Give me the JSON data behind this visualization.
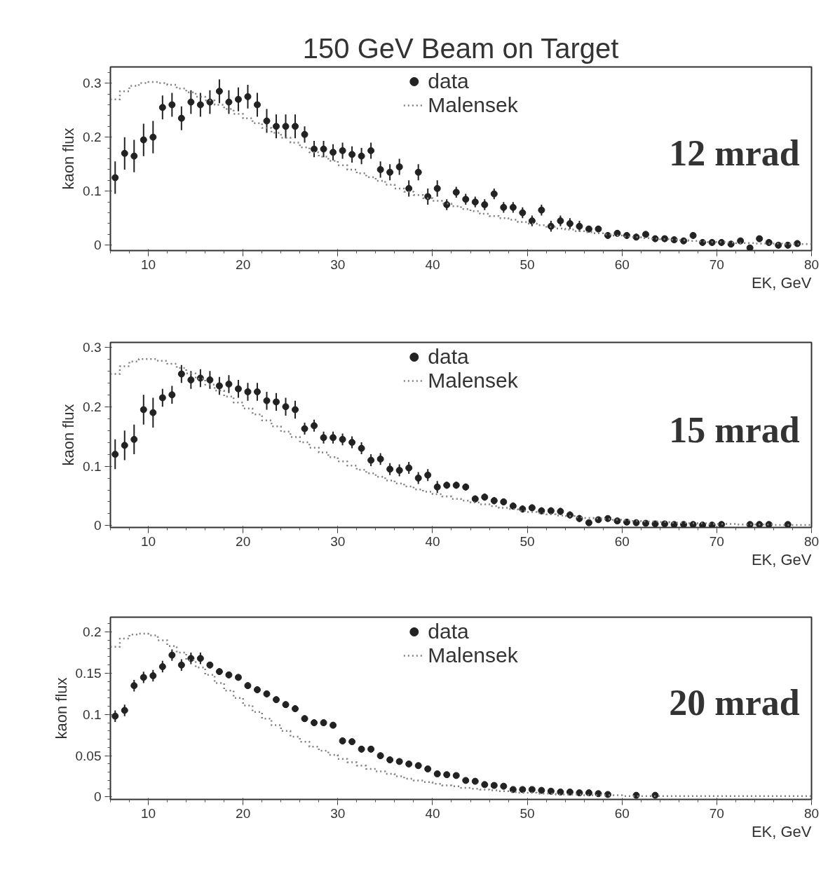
{
  "chart_data": [
    {
      "type": "scatter",
      "title": "150 GeV Beam on Target",
      "xlabel": "EK, GeV",
      "ylabel": "kaon flux",
      "xlim": [
        6,
        80
      ],
      "xticks": [
        10,
        20,
        30,
        40,
        50,
        60,
        70,
        80
      ],
      "ylim": [
        -0.01,
        0.33
      ],
      "yticks": [
        0,
        0.1,
        0.2,
        0.3
      ],
      "legend": "top",
      "annotations": [
        "12 mrad"
      ],
      "series": [
        {
          "name": "data",
          "marker": "circle",
          "color": "#222222",
          "x": [
            6.5,
            7.5,
            8.5,
            9.5,
            10.5,
            11.5,
            12.5,
            13.5,
            14.5,
            15.5,
            16.5,
            17.5,
            18.5,
            19.5,
            20.5,
            21.5,
            22.5,
            23.5,
            24.5,
            25.5,
            26.5,
            27.5,
            28.5,
            29.5,
            30.5,
            31.5,
            32.5,
            33.5,
            34.5,
            35.5,
            36.5,
            37.5,
            38.5,
            39.5,
            40.5,
            41.5,
            42.5,
            43.5,
            44.5,
            45.5,
            46.5,
            47.5,
            48.5,
            49.5,
            50.5,
            51.5,
            52.5,
            53.5,
            54.5,
            55.5,
            56.5,
            57.5,
            58.5,
            59.5,
            60.5,
            61.5,
            62.5,
            63.5,
            64.5,
            65.5,
            66.5,
            67.5,
            68.5,
            69.5,
            70.5,
            71.5,
            72.5,
            73.5,
            74.5,
            75.5,
            76.5,
            77.5,
            78.5
          ],
          "values": [
            0.125,
            0.17,
            0.165,
            0.195,
            0.2,
            0.255,
            0.26,
            0.235,
            0.265,
            0.26,
            0.265,
            0.285,
            0.265,
            0.27,
            0.275,
            0.26,
            0.23,
            0.22,
            0.22,
            0.22,
            0.205,
            0.178,
            0.178,
            0.172,
            0.175,
            0.168,
            0.165,
            0.175,
            0.14,
            0.135,
            0.145,
            0.105,
            0.135,
            0.09,
            0.105,
            0.075,
            0.098,
            0.085,
            0.08,
            0.075,
            0.095,
            0.07,
            0.07,
            0.06,
            0.045,
            0.065,
            0.035,
            0.045,
            0.04,
            0.035,
            0.03,
            0.03,
            0.018,
            0.022,
            0.018,
            0.015,
            0.02,
            0.012,
            0.012,
            0.01,
            0.008,
            0.018,
            0.005,
            0.005,
            0.005,
            0.002,
            0.008,
            -0.005,
            0.012,
            0.005,
            0.0,
            0.0,
            0.003
          ],
          "errors": [
            0.03,
            0.03,
            0.03,
            0.03,
            0.03,
            0.022,
            0.022,
            0.022,
            0.022,
            0.022,
            0.022,
            0.022,
            0.022,
            0.022,
            0.022,
            0.022,
            0.022,
            0.022,
            0.022,
            0.022,
            0.015,
            0.015,
            0.015,
            0.015,
            0.015,
            0.015,
            0.015,
            0.015,
            0.015,
            0.015,
            0.015,
            0.015,
            0.015,
            0.015,
            0.015,
            0.01,
            0.01,
            0.01,
            0.01,
            0.01,
            0.01,
            0.01,
            0.01,
            0.01,
            0.01,
            0.01,
            0.01,
            0.01,
            0.01,
            0.01,
            0.006,
            0.006,
            0.006,
            0.006,
            0.006,
            0.006,
            0.006,
            0.006,
            0.006,
            0.006,
            0.006,
            0.006,
            0.006,
            0.006,
            0.006,
            0.006,
            0.006,
            0.004,
            0.006,
            0.006,
            0.006,
            0.006,
            0.006
          ]
        },
        {
          "name": "Malensek",
          "type": "step",
          "color": "#808080",
          "line_style": "dotted",
          "x": [
            6,
            7,
            8,
            9,
            10,
            11,
            12,
            13,
            14,
            15,
            16,
            17,
            18,
            19,
            20,
            21,
            22,
            23,
            24,
            25,
            26,
            27,
            28,
            29,
            30,
            31,
            32,
            33,
            34,
            35,
            36,
            37,
            38,
            39,
            40,
            41,
            42,
            43,
            44,
            45,
            46,
            47,
            48,
            49,
            50,
            51,
            52,
            53,
            54,
            55,
            56,
            57,
            58,
            59,
            60,
            61,
            62,
            63,
            64,
            65,
            66,
            67,
            68,
            69,
            70,
            71,
            72,
            73,
            74,
            75,
            76,
            77,
            78,
            79,
            80
          ],
          "values": [
            0.27,
            0.285,
            0.295,
            0.3,
            0.302,
            0.3,
            0.297,
            0.29,
            0.283,
            0.275,
            0.268,
            0.26,
            0.252,
            0.243,
            0.235,
            0.226,
            0.217,
            0.208,
            0.199,
            0.19,
            0.181,
            0.172,
            0.164,
            0.156,
            0.148,
            0.14,
            0.133,
            0.126,
            0.119,
            0.112,
            0.105,
            0.099,
            0.093,
            0.087,
            0.082,
            0.077,
            0.072,
            0.067,
            0.063,
            0.058,
            0.054,
            0.05,
            0.047,
            0.043,
            0.04,
            0.037,
            0.034,
            0.031,
            0.029,
            0.026,
            0.024,
            0.022,
            0.02,
            0.018,
            0.016,
            0.015,
            0.013,
            0.012,
            0.011,
            0.01,
            0.009,
            0.008,
            0.007,
            0.006,
            0.006,
            0.005,
            0.004,
            0.004,
            0.003,
            0.003,
            0.003,
            0.002,
            0.002,
            0.002,
            0.002
          ]
        }
      ]
    },
    {
      "type": "scatter",
      "xlabel": "EK, GeV",
      "ylabel": "kaon flux",
      "xlim": [
        6,
        80
      ],
      "xticks": [
        10,
        20,
        30,
        40,
        50,
        60,
        70,
        80
      ],
      "ylim": [
        -0.003,
        0.308
      ],
      "yticks": [
        0,
        0.1,
        0.2,
        0.3
      ],
      "legend": "top",
      "annotations": [
        "15 mrad"
      ],
      "series": [
        {
          "name": "data",
          "marker": "circle",
          "color": "#222222",
          "x": [
            6.5,
            7.5,
            8.5,
            9.5,
            10.5,
            11.5,
            12.5,
            13.5,
            14.5,
            15.5,
            16.5,
            17.5,
            18.5,
            19.5,
            20.5,
            21.5,
            22.5,
            23.5,
            24.5,
            25.5,
            26.5,
            27.5,
            28.5,
            29.5,
            30.5,
            31.5,
            32.5,
            33.5,
            34.5,
            35.5,
            36.5,
            37.5,
            38.5,
            39.5,
            40.5,
            41.5,
            42.5,
            43.5,
            44.5,
            45.5,
            46.5,
            47.5,
            48.5,
            49.5,
            50.5,
            51.5,
            52.5,
            53.5,
            54.5,
            55.5,
            56.5,
            57.5,
            58.5,
            59.5,
            60.5,
            61.5,
            62.5,
            63.5,
            64.5,
            65.5,
            66.5,
            67.5,
            68.5,
            69.5,
            70.5,
            71.5,
            72.5,
            73.5,
            74.5,
            75.5,
            76.5,
            77.5
          ],
          "values": [
            0.12,
            0.135,
            0.145,
            0.195,
            0.19,
            0.215,
            0.22,
            0.255,
            0.245,
            0.248,
            0.245,
            0.235,
            0.238,
            0.23,
            0.225,
            0.225,
            0.21,
            0.208,
            0.2,
            0.195,
            0.163,
            0.168,
            0.148,
            0.148,
            0.145,
            0.14,
            0.13,
            0.11,
            0.112,
            0.095,
            0.093,
            0.097,
            0.08,
            0.085,
            0.065,
            0.068,
            0.068,
            0.065,
            0.045,
            0.048,
            0.042,
            0.04,
            0.033,
            0.028,
            0.03,
            0.025,
            0.025,
            0.024,
            0.018,
            0.012,
            0.005,
            0.01,
            0.012,
            0.008,
            0.006,
            0.005,
            0.004,
            0.003,
            0.003,
            0.002,
            0.002,
            0.002,
            0.001,
            0.001,
            0.002,
            null,
            null,
            0.002,
            0.002,
            0.002,
            null,
            0.002
          ],
          "errors": [
            0.025,
            0.025,
            0.025,
            0.025,
            0.025,
            0.015,
            0.015,
            0.015,
            0.015,
            0.015,
            0.015,
            0.015,
            0.015,
            0.015,
            0.015,
            0.015,
            0.015,
            0.015,
            0.015,
            0.015,
            0.01,
            0.01,
            0.01,
            0.01,
            0.01,
            0.01,
            0.01,
            0.01,
            0.01,
            0.01,
            0.01,
            0.01,
            0.01,
            0.01,
            0.01,
            0.006,
            0.006,
            0.006,
            0.006,
            0.006,
            0.006,
            0.006,
            0.006,
            0.006,
            0.006,
            0.006,
            0.006,
            0.006,
            0.006,
            0.006,
            0.004,
            0.004,
            0.004,
            0.004,
            0.004,
            0.004,
            0.004,
            0.004,
            0.004,
            0.004,
            0.004,
            0.004,
            0.004,
            0.004,
            0.004,
            null,
            null,
            0.004,
            0.004,
            0.004,
            null,
            0.004
          ]
        },
        {
          "name": "Malensek",
          "type": "step",
          "color": "#808080",
          "line_style": "dotted",
          "x": [
            6,
            7,
            8,
            9,
            10,
            11,
            12,
            13,
            14,
            15,
            16,
            17,
            18,
            19,
            20,
            21,
            22,
            23,
            24,
            25,
            26,
            27,
            28,
            29,
            30,
            31,
            32,
            33,
            34,
            35,
            36,
            37,
            38,
            39,
            40,
            41,
            42,
            43,
            44,
            45,
            46,
            47,
            48,
            49,
            50,
            51,
            52,
            53,
            54,
            55,
            56,
            57,
            58,
            59,
            60,
            61,
            62,
            63,
            64,
            65,
            66,
            67,
            68,
            69,
            70,
            71,
            72,
            73,
            74,
            75,
            76,
            77,
            78,
            79,
            80
          ],
          "values": [
            0.255,
            0.268,
            0.276,
            0.28,
            0.28,
            0.277,
            0.272,
            0.265,
            0.256,
            0.247,
            0.237,
            0.227,
            0.217,
            0.207,
            0.197,
            0.187,
            0.177,
            0.167,
            0.158,
            0.149,
            0.14,
            0.131,
            0.123,
            0.115,
            0.108,
            0.101,
            0.094,
            0.088,
            0.082,
            0.076,
            0.071,
            0.066,
            0.061,
            0.057,
            0.053,
            0.049,
            0.045,
            0.042,
            0.039,
            0.036,
            0.033,
            0.03,
            0.028,
            0.025,
            0.023,
            0.021,
            0.019,
            0.017,
            0.016,
            0.014,
            0.013,
            0.012,
            0.011,
            0.01,
            0.009,
            0.008,
            0.007,
            0.007,
            0.006,
            0.005,
            0.005,
            0.004,
            0.004,
            0.003,
            0.003,
            0.003,
            0.002,
            0.002,
            0.002,
            0.002,
            0.001,
            0.001,
            0.001,
            0.001,
            0.001
          ]
        }
      ]
    },
    {
      "type": "scatter",
      "xlabel": "EK, GeV",
      "ylabel": "kaon flux",
      "xlim": [
        6,
        80
      ],
      "xticks": [
        10,
        20,
        30,
        40,
        50,
        60,
        70,
        80
      ],
      "ylim": [
        -0.003,
        0.218
      ],
      "yticks": [
        0,
        0.05,
        0.1,
        0.15,
        0.2
      ],
      "legend": "top",
      "annotations": [
        "20 mrad"
      ],
      "series": [
        {
          "name": "data",
          "marker": "circle",
          "color": "#222222",
          "x": [
            6.5,
            7.5,
            8.5,
            9.5,
            10.5,
            11.5,
            12.5,
            13.5,
            14.5,
            15.5,
            16.5,
            17.5,
            18.5,
            19.5,
            20.5,
            21.5,
            22.5,
            23.5,
            24.5,
            25.5,
            26.5,
            27.5,
            28.5,
            29.5,
            30.5,
            31.5,
            32.5,
            33.5,
            34.5,
            35.5,
            36.5,
            37.5,
            38.5,
            39.5,
            40.5,
            41.5,
            42.5,
            43.5,
            44.5,
            45.5,
            46.5,
            47.5,
            48.5,
            49.5,
            50.5,
            51.5,
            52.5,
            53.5,
            54.5,
            55.5,
            56.5,
            57.5,
            58.5,
            59.5,
            60.5,
            61.5,
            62.5,
            63.5
          ],
          "values": [
            0.098,
            0.105,
            0.135,
            0.145,
            0.147,
            0.158,
            0.172,
            0.16,
            0.168,
            0.168,
            0.16,
            0.152,
            0.148,
            0.145,
            0.135,
            0.13,
            0.125,
            0.118,
            0.112,
            0.107,
            0.095,
            0.09,
            0.09,
            0.087,
            0.068,
            0.067,
            0.058,
            0.058,
            0.05,
            0.045,
            0.043,
            0.04,
            0.038,
            0.034,
            0.028,
            0.027,
            0.026,
            0.02,
            0.019,
            0.015,
            0.014,
            0.013,
            0.009,
            0.009,
            0.009,
            0.008,
            0.007,
            0.006,
            0.006,
            0.005,
            0.005,
            0.004,
            0.003,
            null,
            null,
            0.002,
            null,
            0.002
          ],
          "errors": [
            0.007,
            0.007,
            0.007,
            0.007,
            0.007,
            0.007,
            0.007,
            0.007,
            0.007,
            0.007,
            0.004,
            0.004,
            0.004,
            0.004,
            0.004,
            0.004,
            0.004,
            0.004,
            0.004,
            0.004,
            0.004,
            0.004,
            0.004,
            0.004,
            0.004,
            0.004,
            0.004,
            0.004,
            0.004,
            0.004,
            0.002,
            0.002,
            0.002,
            0.002,
            0.002,
            0.002,
            0.002,
            0.002,
            0.002,
            0.002,
            0.002,
            0.002,
            0.002,
            0.002,
            0.002,
            0.002,
            0.002,
            0.002,
            0.002,
            0.002,
            0.002,
            0.002,
            0.002,
            null,
            null,
            0.002,
            null,
            0.002
          ]
        },
        {
          "name": "Malensek",
          "type": "step",
          "color": "#808080",
          "line_style": "dotted",
          "x": [
            6,
            7,
            8,
            9,
            10,
            11,
            12,
            13,
            14,
            15,
            16,
            17,
            18,
            19,
            20,
            21,
            22,
            23,
            24,
            25,
            26,
            27,
            28,
            29,
            30,
            31,
            32,
            33,
            34,
            35,
            36,
            37,
            38,
            39,
            40,
            41,
            42,
            43,
            44,
            45,
            46,
            47,
            48,
            49,
            50,
            51,
            52,
            53,
            54,
            55,
            56,
            57,
            58,
            59,
            60,
            61,
            62,
            63,
            64,
            65,
            66,
            67,
            68,
            69,
            70,
            71,
            72,
            73,
            74,
            75,
            76,
            77,
            78,
            79,
            80
          ],
          "values": [
            0.182,
            0.192,
            0.197,
            0.198,
            0.196,
            0.19,
            0.183,
            0.175,
            0.166,
            0.157,
            0.148,
            0.138,
            0.129,
            0.12,
            0.111,
            0.103,
            0.095,
            0.087,
            0.08,
            0.073,
            0.067,
            0.061,
            0.056,
            0.051,
            0.046,
            0.042,
            0.038,
            0.034,
            0.031,
            0.028,
            0.025,
            0.022,
            0.02,
            0.018,
            0.016,
            0.014,
            0.013,
            0.011,
            0.01,
            0.009,
            0.008,
            0.007,
            0.006,
            0.005,
            0.005,
            0.004,
            0.004,
            0.003,
            0.003,
            0.003,
            0.002,
            0.002,
            0.002,
            0.002,
            0.001,
            0.001,
            0.001,
            0.001,
            0.001,
            0.001,
            0.001,
            0.001,
            0.001,
            0.001,
            0.001,
            0.001,
            0.001,
            0.001,
            0.001,
            0.001,
            0.001,
            0.001,
            0.001,
            0.001,
            0.001
          ]
        }
      ]
    }
  ]
}
